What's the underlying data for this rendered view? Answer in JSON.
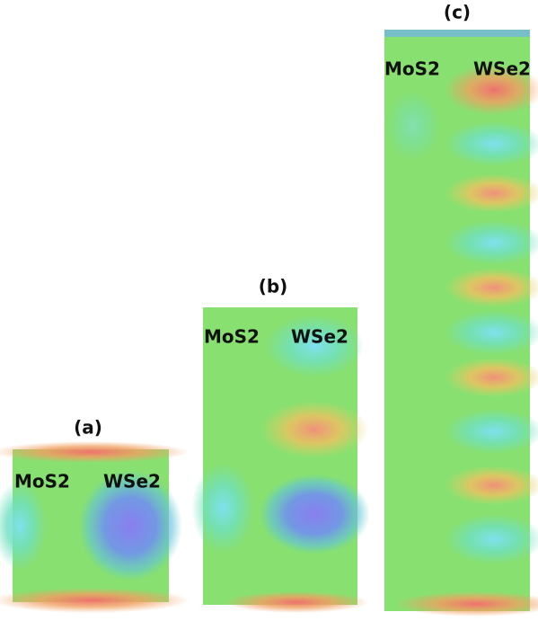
{
  "panels": [
    {
      "label": "(a)",
      "left_label": "MoS2",
      "right_label": "WSe2"
    },
    {
      "label": "(b)",
      "left_label": "MoS2",
      "right_label": "WSe2"
    },
    {
      "label": "(c)",
      "left_label": "MoS2",
      "right_label": "WSe2"
    }
  ]
}
